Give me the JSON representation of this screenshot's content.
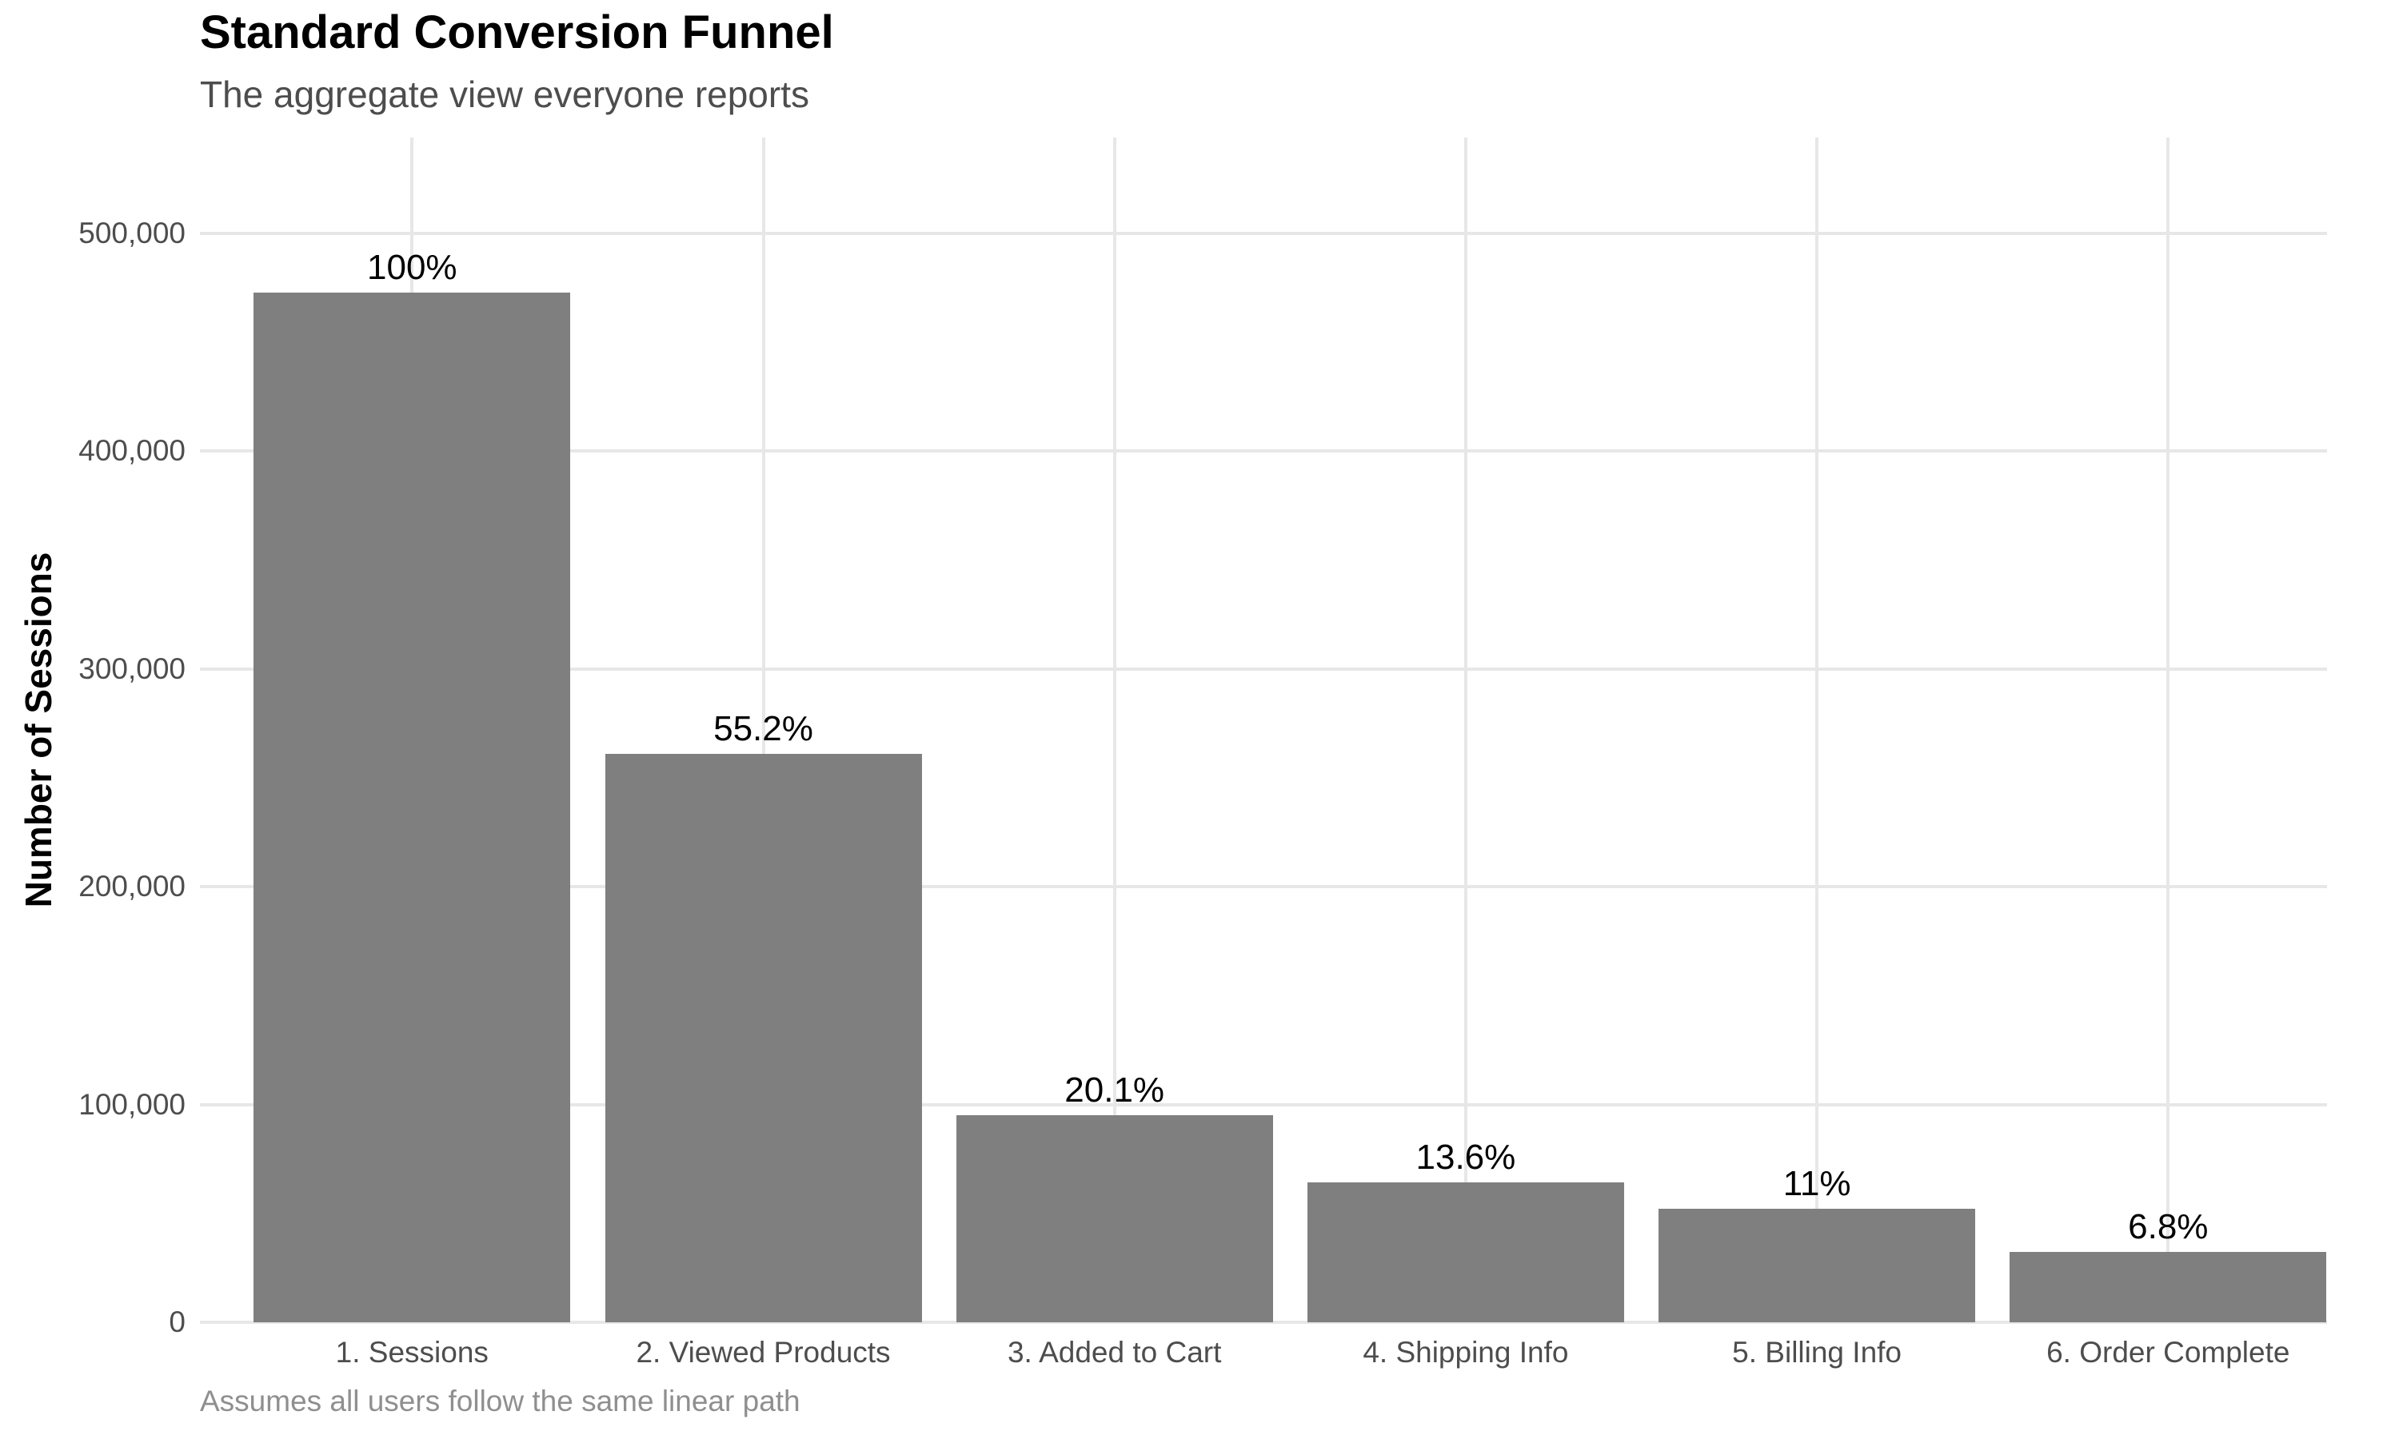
{
  "chart_data": {
    "type": "bar",
    "title": "Standard Conversion Funnel",
    "subtitle": "The aggregate view everyone reports",
    "caption": "Assumes all users follow the same linear path",
    "xlabel": "",
    "ylabel": "Number of Sessions",
    "categories": [
      "1. Sessions",
      "2. Viewed Products",
      "3. Added to Cart",
      "4. Shipping Info",
      "5. Billing Info",
      "6. Order Complete"
    ],
    "bar_labels": [
      "100%",
      "55.2%",
      "20.1%",
      "13.6%",
      "11%",
      "6.8%"
    ],
    "values_estimated_sessions": [
      472800,
      261000,
      95000,
      64300,
      52000,
      32150
    ],
    "ylim": [
      0,
      544000
    ],
    "yticks": [
      0,
      100000,
      200000,
      300000,
      400000,
      500000
    ],
    "ytick_labels": [
      "0",
      "100,000",
      "200,000",
      "300,000",
      "400,000",
      "500,000"
    ],
    "grid": "light horizontal and vertical gridlines, no axis lines",
    "legend_position": "none",
    "colors": {
      "bar_fill": "#7f7f7f",
      "gridline": "#e7e7e7",
      "axis_text": "#4d4d4d",
      "title_text": "#000000",
      "subtitle_text": "#4d4d4d",
      "caption_text": "#8f8f8f",
      "background": "#ffffff"
    }
  }
}
